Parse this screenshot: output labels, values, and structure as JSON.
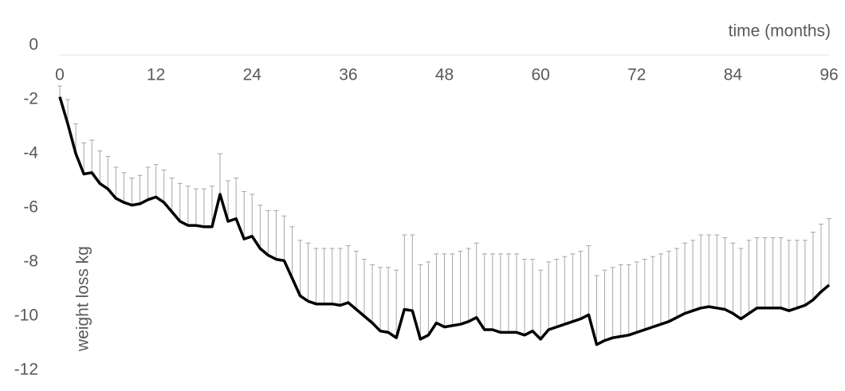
{
  "chart_data": {
    "type": "line",
    "x_label": "time (months)",
    "y_label": "weight loss  kg",
    "x": [
      0,
      1,
      2,
      3,
      4,
      5,
      6,
      7,
      8,
      9,
      10,
      11,
      12,
      13,
      14,
      15,
      16,
      17,
      18,
      19,
      20,
      21,
      22,
      23,
      24,
      25,
      26,
      27,
      28,
      29,
      30,
      31,
      32,
      33,
      34,
      35,
      36,
      37,
      38,
      39,
      40,
      41,
      42,
      43,
      44,
      45,
      46,
      47,
      48,
      49,
      50,
      51,
      52,
      53,
      54,
      55,
      56,
      57,
      58,
      59,
      60,
      61,
      62,
      63,
      64,
      65,
      66,
      67,
      68,
      69,
      70,
      71,
      72,
      73,
      74,
      75,
      76,
      77,
      78,
      79,
      80,
      81,
      82,
      83,
      84,
      85,
      86,
      87,
      88,
      89,
      90,
      91,
      92,
      93,
      94,
      95,
      96
    ],
    "series": [
      {
        "color": "#000000",
        "values": [
          -1.9,
          -2.9,
          -4.0,
          -4.75,
          -4.7,
          -5.1,
          -5.3,
          -5.65,
          -5.8,
          -5.9,
          -5.85,
          -5.7,
          -5.6,
          -5.8,
          -6.15,
          -6.5,
          -6.65,
          -6.65,
          -6.7,
          -6.7,
          -5.5,
          -6.5,
          -6.4,
          -7.15,
          -7.05,
          -7.5,
          -7.75,
          -7.9,
          -7.95,
          -8.6,
          -9.25,
          -9.45,
          -9.55,
          -9.55,
          -9.55,
          -9.6,
          -9.5,
          -9.75,
          -10.0,
          -10.25,
          -10.55,
          -10.6,
          -10.8,
          -9.75,
          -9.8,
          -10.85,
          -10.7,
          -10.25,
          -10.4,
          -10.35,
          -10.3,
          -10.2,
          -10.05,
          -10.5,
          -10.5,
          -10.6,
          -10.6,
          -10.6,
          -10.7,
          -10.55,
          -10.85,
          -10.5,
          -10.4,
          -10.3,
          -10.2,
          -10.1,
          -9.95,
          -11.05,
          -10.9,
          -10.8,
          -10.75,
          -10.7,
          -10.6,
          -10.5,
          -10.4,
          -10.3,
          -10.2,
          -10.05,
          -9.9,
          -9.8,
          -9.7,
          -9.65,
          -9.7,
          -9.75,
          -9.9,
          -10.1,
          -9.9,
          -9.7,
          -9.7,
          -9.7,
          -9.7,
          -9.8,
          -9.7,
          -9.6,
          -9.4,
          -9.1,
          -8.85
        ],
        "error_plus": [
          0.4,
          0.9,
          1.1,
          1.15,
          1.2,
          1.2,
          1.2,
          1.15,
          1.1,
          1.0,
          1.05,
          1.2,
          1.2,
          1.2,
          1.25,
          1.4,
          1.45,
          1.35,
          1.4,
          1.5,
          1.5,
          1.5,
          1.5,
          1.75,
          1.55,
          1.6,
          1.65,
          1.8,
          1.65,
          1.9,
          2.05,
          2.15,
          2.05,
          2.05,
          2.05,
          2.1,
          2.1,
          2.15,
          2.1,
          2.15,
          2.35,
          2.4,
          2.5,
          2.75,
          2.8,
          2.75,
          2.7,
          2.55,
          2.7,
          2.65,
          2.7,
          2.7,
          2.75,
          2.8,
          2.8,
          2.9,
          2.9,
          2.9,
          2.8,
          2.65,
          2.55,
          2.5,
          2.5,
          2.5,
          2.5,
          2.5,
          2.55,
          2.55,
          2.6,
          2.6,
          2.65,
          2.6,
          2.6,
          2.6,
          2.6,
          2.6,
          2.6,
          2.55,
          2.6,
          2.6,
          2.7,
          2.65,
          2.7,
          2.65,
          2.6,
          2.6,
          2.7,
          2.6,
          2.6,
          2.6,
          2.6,
          2.6,
          2.5,
          2.4,
          2.5,
          2.5,
          2.45
        ],
        "error_color": "#a6a6a6"
      }
    ],
    "xlim": [
      0,
      96
    ],
    "xticks": [
      0,
      12,
      24,
      36,
      48,
      60,
      72,
      84,
      96
    ],
    "ylim": [
      -12,
      0
    ],
    "yticks": [
      0,
      -2,
      -4,
      -6,
      -8,
      -10,
      -12
    ]
  }
}
